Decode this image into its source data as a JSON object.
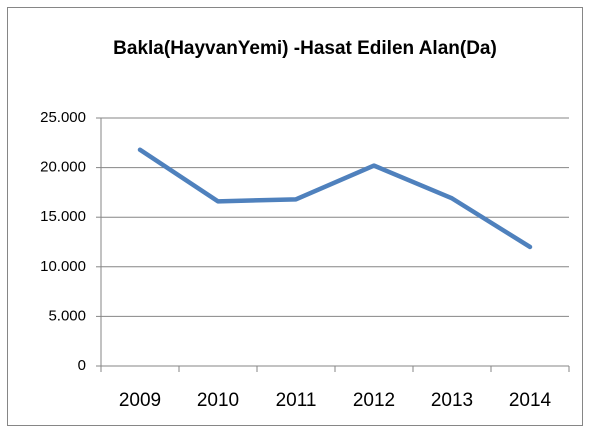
{
  "chart_data": {
    "type": "line",
    "title": "Bakla(HayvanYemi) -Hasat Edilen Alan(Da)",
    "categories": [
      "2009",
      "2010",
      "2011",
      "2012",
      "2013",
      "2014"
    ],
    "values": [
      21800,
      16600,
      16800,
      20200,
      16900,
      12000
    ],
    "color": "#4f81bd",
    "ylim": [
      0,
      25000
    ],
    "yticks": [
      0,
      {
        "value": 5000,
        "label": "5.000"
      },
      {
        "value": 10000,
        "label": "10.000"
      },
      {
        "value": 15000,
        "label": "15.000"
      },
      {
        "value": 20000,
        "label": "20.000"
      },
      {
        "value": 25000,
        "label": "25.000"
      }
    ],
    "grid": true
  }
}
